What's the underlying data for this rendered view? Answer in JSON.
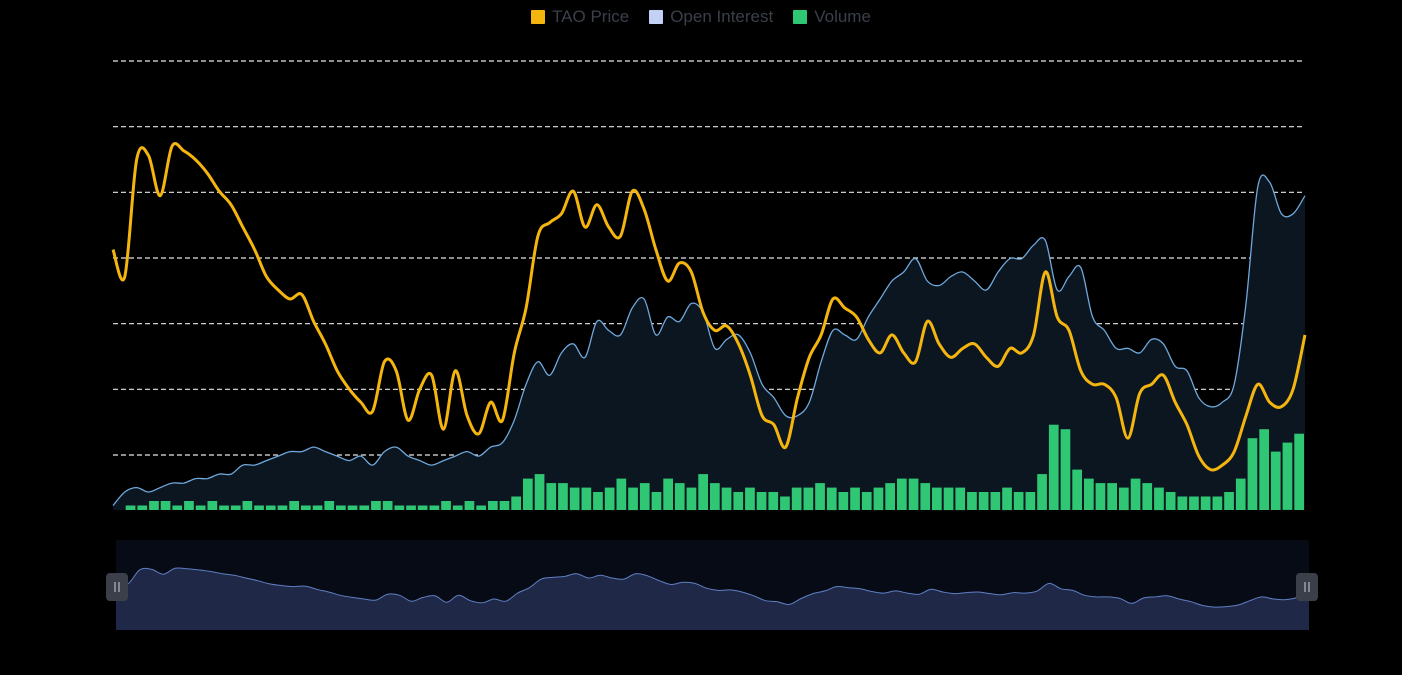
{
  "legend": {
    "price_label": "TAO Price",
    "oi_label": "Open Interest",
    "volume_label": "Volume"
  },
  "colors": {
    "price": "#f5b50f",
    "open_interest": "#6fa8dc",
    "open_interest_fill": "#0b1620",
    "volume": "#2fc774",
    "grid": "#e6e6e6",
    "zoom_fill": "#1f2947",
    "zoom_bg": "#070b16",
    "zoom_line": "#5f7fc4"
  },
  "chart_data": {
    "type": "line",
    "title": "",
    "xlabel": "",
    "ylabel": "",
    "grid": true,
    "legend_position": "top-center",
    "gridline_count": 7,
    "series": [
      {
        "name": "TAO Price",
        "kind": "line",
        "values": [
          0.58,
          0.52,
          0.78,
          0.79,
          0.7,
          0.81,
          0.8,
          0.78,
          0.75,
          0.71,
          0.68,
          0.63,
          0.58,
          0.52,
          0.49,
          0.47,
          0.48,
          0.42,
          0.37,
          0.31,
          0.27,
          0.24,
          0.22,
          0.33,
          0.31,
          0.2,
          0.27,
          0.3,
          0.18,
          0.31,
          0.21,
          0.17,
          0.24,
          0.2,
          0.35,
          0.45,
          0.61,
          0.64,
          0.66,
          0.71,
          0.63,
          0.68,
          0.63,
          0.61,
          0.71,
          0.67,
          0.58,
          0.51,
          0.55,
          0.53,
          0.44,
          0.4,
          0.41,
          0.37,
          0.3,
          0.21,
          0.19,
          0.14,
          0.25,
          0.34,
          0.39,
          0.47,
          0.45,
          0.43,
          0.38,
          0.35,
          0.39,
          0.35,
          0.33,
          0.42,
          0.37,
          0.34,
          0.36,
          0.37,
          0.34,
          0.32,
          0.36,
          0.35,
          0.39,
          0.53,
          0.43,
          0.4,
          0.31,
          0.28,
          0.28,
          0.25,
          0.16,
          0.26,
          0.28,
          0.3,
          0.24,
          0.19,
          0.12,
          0.09,
          0.1,
          0.13,
          0.21,
          0.28,
          0.24,
          0.23,
          0.27,
          0.39
        ]
      },
      {
        "name": "Open Interest",
        "kind": "area",
        "values": [
          0.01,
          0.04,
          0.05,
          0.04,
          0.05,
          0.06,
          0.06,
          0.07,
          0.07,
          0.08,
          0.08,
          0.1,
          0.1,
          0.11,
          0.12,
          0.13,
          0.13,
          0.14,
          0.13,
          0.12,
          0.11,
          0.12,
          0.1,
          0.13,
          0.14,
          0.12,
          0.11,
          0.1,
          0.11,
          0.12,
          0.13,
          0.12,
          0.14,
          0.15,
          0.2,
          0.28,
          0.33,
          0.3,
          0.35,
          0.37,
          0.34,
          0.42,
          0.4,
          0.39,
          0.45,
          0.47,
          0.39,
          0.43,
          0.42,
          0.46,
          0.44,
          0.36,
          0.38,
          0.39,
          0.35,
          0.28,
          0.25,
          0.21,
          0.21,
          0.24,
          0.33,
          0.4,
          0.39,
          0.38,
          0.43,
          0.47,
          0.51,
          0.53,
          0.56,
          0.51,
          0.5,
          0.52,
          0.53,
          0.51,
          0.49,
          0.53,
          0.56,
          0.56,
          0.59,
          0.6,
          0.49,
          0.52,
          0.54,
          0.43,
          0.4,
          0.36,
          0.36,
          0.35,
          0.38,
          0.37,
          0.32,
          0.31,
          0.25,
          0.23,
          0.24,
          0.28,
          0.46,
          0.72,
          0.73,
          0.66,
          0.66,
          0.7
        ]
      },
      {
        "name": "Volume",
        "kind": "bar",
        "values": [
          0.0,
          0.01,
          0.01,
          0.02,
          0.02,
          0.01,
          0.02,
          0.01,
          0.02,
          0.01,
          0.01,
          0.02,
          0.01,
          0.01,
          0.01,
          0.02,
          0.01,
          0.01,
          0.02,
          0.01,
          0.01,
          0.01,
          0.02,
          0.02,
          0.01,
          0.01,
          0.01,
          0.01,
          0.02,
          0.01,
          0.02,
          0.01,
          0.02,
          0.02,
          0.03,
          0.07,
          0.08,
          0.06,
          0.06,
          0.05,
          0.05,
          0.04,
          0.05,
          0.07,
          0.05,
          0.06,
          0.04,
          0.07,
          0.06,
          0.05,
          0.08,
          0.06,
          0.05,
          0.04,
          0.05,
          0.04,
          0.04,
          0.03,
          0.05,
          0.05,
          0.06,
          0.05,
          0.04,
          0.05,
          0.04,
          0.05,
          0.06,
          0.07,
          0.07,
          0.06,
          0.05,
          0.05,
          0.05,
          0.04,
          0.04,
          0.04,
          0.05,
          0.04,
          0.04,
          0.08,
          0.19,
          0.18,
          0.09,
          0.07,
          0.06,
          0.06,
          0.05,
          0.07,
          0.06,
          0.05,
          0.04,
          0.03,
          0.03,
          0.03,
          0.03,
          0.04,
          0.07,
          0.16,
          0.18,
          0.13,
          0.15,
          0.17
        ]
      }
    ]
  },
  "zoom": {
    "start_fraction": 0,
    "end_fraction": 1
  }
}
